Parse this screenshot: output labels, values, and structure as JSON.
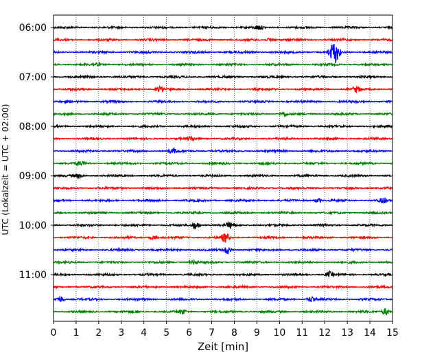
{
  "chart_data": {
    "type": "line",
    "title": "",
    "xlabel": "Zeit  [min]",
    "ylabel": "UTC (Lokalzeit = UTC + 02:00)",
    "xlim": [
      0,
      15
    ],
    "x_ticks": [
      "0",
      "1",
      "2",
      "3",
      "4",
      "5",
      "6",
      "7",
      "8",
      "9",
      "10",
      "11",
      "12",
      "13",
      "14",
      "15"
    ],
    "y_tick_labels": [
      "06:00",
      "07:00",
      "08:00",
      "09:00",
      "10:00",
      "11:00"
    ],
    "grid": "vertical dotted",
    "row_interval_minutes": 15,
    "traces": [
      {
        "start": "06:00",
        "color": "#000000",
        "events": [
          [
            9.1,
            3
          ]
        ]
      },
      {
        "start": "06:15",
        "color": "#ff0000",
        "events": [
          [
            9.6,
            3
          ]
        ]
      },
      {
        "start": "06:30",
        "color": "#0000ff",
        "events": [
          [
            12.3,
            8
          ],
          [
            12.5,
            14
          ]
        ]
      },
      {
        "start": "06:45",
        "color": "#008000",
        "events": [
          [
            1.9,
            3
          ]
        ]
      },
      {
        "start": "07:00",
        "color": "#000000",
        "events": []
      },
      {
        "start": "07:15",
        "color": "#ff0000",
        "events": [
          [
            4.7,
            4
          ],
          [
            13.4,
            4
          ]
        ]
      },
      {
        "start": "07:30",
        "color": "#0000ff",
        "events": []
      },
      {
        "start": "07:45",
        "color": "#008000",
        "events": [
          [
            10.2,
            3
          ]
        ]
      },
      {
        "start": "08:00",
        "color": "#000000",
        "events": []
      },
      {
        "start": "08:15",
        "color": "#ff0000",
        "events": [
          [
            6.1,
            3
          ]
        ]
      },
      {
        "start": "08:30",
        "color": "#0000ff",
        "events": [
          [
            5.3,
            3
          ]
        ]
      },
      {
        "start": "08:45",
        "color": "#008000",
        "events": [
          [
            1.2,
            3
          ]
        ]
      },
      {
        "start": "09:00",
        "color": "#000000",
        "events": [
          [
            1.1,
            3
          ]
        ]
      },
      {
        "start": "09:15",
        "color": "#ff0000",
        "events": []
      },
      {
        "start": "09:30",
        "color": "#0000ff",
        "events": [
          [
            11.7,
            3
          ],
          [
            14.6,
            4
          ]
        ]
      },
      {
        "start": "09:45",
        "color": "#008000",
        "events": []
      },
      {
        "start": "10:00",
        "color": "#000000",
        "events": [
          [
            6.3,
            6
          ],
          [
            7.8,
            4
          ]
        ]
      },
      {
        "start": "10:15",
        "color": "#ff0000",
        "events": [
          [
            4.4,
            3
          ],
          [
            7.6,
            7
          ]
        ]
      },
      {
        "start": "10:30",
        "color": "#0000ff",
        "events": [
          [
            7.7,
            6
          ]
        ]
      },
      {
        "start": "10:45",
        "color": "#008000",
        "events": [
          [
            6.2,
            3
          ]
        ]
      },
      {
        "start": "11:00",
        "color": "#000000",
        "events": [
          [
            12.2,
            4
          ]
        ]
      },
      {
        "start": "11:15",
        "color": "#ff0000",
        "events": []
      },
      {
        "start": "11:30",
        "color": "#0000ff",
        "events": [
          [
            0.3,
            5
          ],
          [
            11.4,
            4
          ]
        ]
      },
      {
        "start": "11:45",
        "color": "#008000",
        "events": [
          [
            5.7,
            3
          ],
          [
            14.7,
            5
          ]
        ]
      }
    ]
  }
}
